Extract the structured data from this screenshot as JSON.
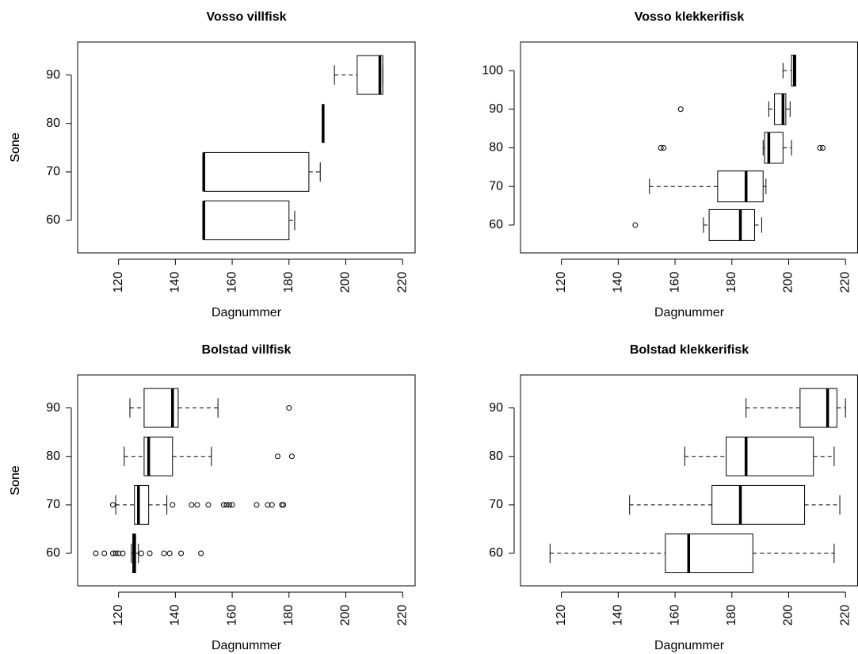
{
  "chart_data": [
    {
      "type": "boxplot",
      "title": "Vosso villfisk",
      "x_label": "Dagnummer",
      "y_label": "Sone",
      "xlim": [
        105.6,
        224.4
      ],
      "xticks": [
        120,
        140,
        160,
        180,
        200,
        220
      ],
      "ylim": [
        53.3,
        96.8
      ],
      "yticks": [
        60,
        70,
        80,
        90
      ],
      "boxes": [
        {
          "position": 60,
          "whisker_low": 150,
          "q1": 150,
          "median": 150,
          "q3": 180,
          "whisker_high": 182,
          "outliers": []
        },
        {
          "position": 70,
          "whisker_low": 150,
          "q1": 150,
          "median": 150,
          "q3": 187,
          "whisker_high": 191,
          "outliers": []
        },
        {
          "position": 80,
          "whisker_low": 192,
          "q1": 192,
          "median": 192,
          "q3": 192,
          "whisker_high": 192,
          "outliers": []
        },
        {
          "position": 90,
          "whisker_low": 196,
          "q1": 204,
          "median": 212,
          "q3": 213,
          "whisker_high": 213,
          "outliers": []
        }
      ]
    },
    {
      "type": "boxplot",
      "title": "Vosso klekkerifisk",
      "x_label": "Dagnummer",
      "y_label": "Sone",
      "xlim": [
        105.6,
        224.4
      ],
      "xticks": [
        120,
        140,
        160,
        180,
        200,
        220
      ],
      "ylim": [
        52.8,
        107.4
      ],
      "yticks": [
        60,
        70,
        80,
        90,
        100
      ],
      "boxes": [
        {
          "position": 60,
          "whisker_low": 170,
          "q1": 172,
          "median": 183,
          "q3": 188,
          "whisker_high": 190.5,
          "outliers": [
            146
          ]
        },
        {
          "position": 70,
          "whisker_low": 151,
          "q1": 175,
          "median": 185,
          "q3": 191,
          "whisker_high": 192,
          "outliers": []
        },
        {
          "position": 80,
          "whisker_low": 191,
          "q1": 191.5,
          "median": 193,
          "q3": 198,
          "whisker_high": 201,
          "outliers": [
            155,
            156,
            211,
            212
          ]
        },
        {
          "position": 90,
          "whisker_low": 193,
          "q1": 195,
          "median": 198,
          "q3": 199,
          "whisker_high": 200.5,
          "outliers": [
            162
          ]
        },
        {
          "position": 100,
          "whisker_low": 198,
          "q1": 201,
          "median": 202,
          "q3": 202.5,
          "whisker_high": 202.5,
          "outliers": []
        }
      ]
    },
    {
      "type": "boxplot",
      "title": "Bolstad villfisk",
      "x_label": "Dagnummer",
      "y_label": "Sone",
      "xlim": [
        105.6,
        224.4
      ],
      "xticks": [
        120,
        140,
        160,
        180,
        200,
        220
      ],
      "ylim": [
        53.3,
        96.8
      ],
      "yticks": [
        60,
        70,
        80,
        90
      ],
      "boxes": [
        {
          "position": 60,
          "whisker_low": 124.5,
          "q1": 125,
          "median": 125.5,
          "q3": 126,
          "whisker_high": 127,
          "outliers": [
            112,
            115,
            118,
            119,
            120,
            121.5,
            128,
            131,
            136,
            138,
            142,
            149
          ]
        },
        {
          "position": 70,
          "whisker_low": 119,
          "q1": 125.6,
          "median": 127,
          "q3": 130.6,
          "whisker_high": 137,
          "outliers": [
            118,
            139,
            145.7,
            147.7,
            151.6,
            157,
            158,
            159,
            160,
            168.6,
            172.5,
            174,
            177.5,
            178
          ]
        },
        {
          "position": 80,
          "whisker_low": 122,
          "q1": 129,
          "median": 130.6,
          "q3": 139,
          "whisker_high": 152.7,
          "outliers": [
            176,
            181
          ]
        },
        {
          "position": 90,
          "whisker_low": 124,
          "q1": 129,
          "median": 139,
          "q3": 141,
          "whisker_high": 155,
          "outliers": [
            180
          ]
        }
      ]
    },
    {
      "type": "boxplot",
      "title": "Bolstad klekkerifisk",
      "x_label": "Dagnummer",
      "y_label": "Sone",
      "xlim": [
        105.6,
        224.4
      ],
      "xticks": [
        120,
        140,
        160,
        180,
        200,
        220
      ],
      "ylim": [
        53.3,
        96.8
      ],
      "yticks": [
        60,
        70,
        80,
        90
      ],
      "boxes": [
        {
          "position": 60,
          "whisker_low": 116,
          "q1": 156.6,
          "median": 164.8,
          "q3": 187.4,
          "whisker_high": 216,
          "outliers": []
        },
        {
          "position": 70,
          "whisker_low": 144,
          "q1": 173,
          "median": 183,
          "q3": 205.6,
          "whisker_high": 218,
          "outliers": []
        },
        {
          "position": 80,
          "whisker_low": 163.4,
          "q1": 178,
          "median": 185,
          "q3": 208.7,
          "whisker_high": 216,
          "outliers": []
        },
        {
          "position": 90,
          "whisker_low": 185,
          "q1": 204,
          "median": 213.7,
          "q3": 217,
          "whisker_high": 220,
          "outliers": []
        }
      ]
    }
  ]
}
